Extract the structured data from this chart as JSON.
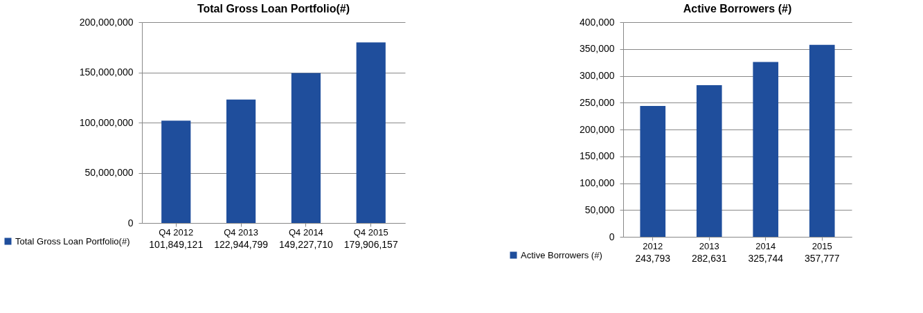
{
  "chart_data": [
    {
      "type": "bar",
      "title": "Total Gross Loan Portfolio(#)",
      "categories": [
        "Q4 2012",
        "Q4 2013",
        "Q4 2014",
        "Q4 2015"
      ],
      "series": [
        {
          "name": "Total Gross Loan Portfolio(#)",
          "color": "#1f4e9c",
          "values": [
            101849121,
            122944799,
            149227710,
            179906157
          ],
          "value_labels": [
            "101,849,121",
            "122,944,799",
            "149,227,710",
            "179,906,157"
          ]
        }
      ],
      "ylim": [
        0,
        200000000
      ],
      "yticks": [
        0,
        {
          "value": 50000000,
          "label": "50,000,000"
        },
        {
          "value": 100000000,
          "label": "100,000,000"
        },
        {
          "value": 150000000,
          "label": "150,000,000"
        },
        {
          "value": 200000000,
          "label": "200,000,000"
        }
      ],
      "grid": "y",
      "legend": "bottom left"
    },
    {
      "type": "bar",
      "title": "Active Borrowers (#)",
      "categories": [
        "2012",
        "2013",
        "2014",
        "2015"
      ],
      "series": [
        {
          "name": "Active Borrowers (#)",
          "color": "#1f4e9c",
          "values": [
            243793,
            282631,
            325744,
            357777
          ],
          "value_labels": [
            "243,793",
            "282,631",
            "325,744",
            "357,777"
          ]
        }
      ],
      "ylim": [
        0,
        400000
      ],
      "yticks": [
        0,
        {
          "value": 50000,
          "label": "50,000"
        },
        {
          "value": 100000,
          "label": "100,000"
        },
        {
          "value": 150000,
          "label": "150,000"
        },
        {
          "value": 200000,
          "label": "200,000"
        },
        {
          "value": 250000,
          "label": "250,000"
        },
        {
          "value": 300000,
          "label": "300,000"
        },
        {
          "value": 350000,
          "label": "350,000"
        },
        {
          "value": 400000,
          "label": "400,000"
        }
      ],
      "grid": "y",
      "legend": "bottom left"
    }
  ]
}
